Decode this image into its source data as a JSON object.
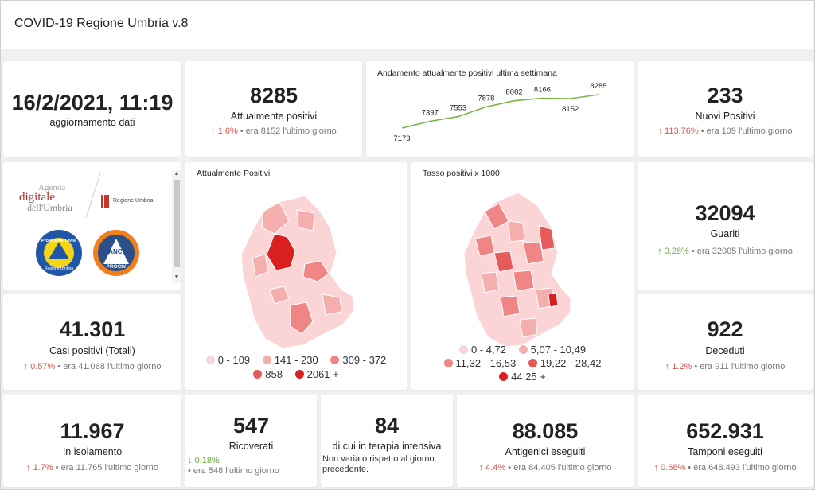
{
  "header": {
    "title": "COVID-19 Regione Umbria v.8"
  },
  "update": {
    "datetime": "16/2/2021, 11:19",
    "label": "aggiornamento dati"
  },
  "positivi": {
    "value": "8285",
    "label": "Attualmente positivi",
    "pct": "1.6%",
    "prev": "era 8152",
    "suffix": "l'ultimo giorno"
  },
  "trend_chart": {
    "title": "Andamento attualmente positivi ultima settimana",
    "chart_data": {
      "type": "line",
      "title": "Andamento attualmente positivi ultima settimana",
      "values": [
        7173,
        7397,
        7553,
        7878,
        8082,
        8166,
        8152,
        8285
      ],
      "labels": [
        "7173",
        "7397",
        "7553",
        "7878",
        "8082",
        "8166",
        "8152",
        "8285"
      ],
      "color": "#7ab648"
    }
  },
  "nuovi": {
    "value": "233",
    "label": "Nuovi Positivi",
    "pct": "113.76%",
    "prev": "era 109",
    "suffix": "l'ultimo giorno"
  },
  "logos": {
    "agenda_line1": "Agenda",
    "agenda_line2": "digitale",
    "agenda_line3": "dell'Umbria",
    "regione": "Regione Umbria",
    "protezione_top": "Protezione Civile",
    "protezione_bottom": "Regione Umbria",
    "anci_top": "ANCI",
    "anci_bottom": "PROCIV"
  },
  "map1": {
    "title": "Attualmente Positivi",
    "legend": [
      {
        "label": "0 - 109",
        "color": "#fbd5d5"
      },
      {
        "label": "141 - 230",
        "color": "#f5aeae"
      },
      {
        "label": "309 - 372",
        "color": "#ef8585"
      },
      {
        "label": "858",
        "color": "#e65a5a"
      },
      {
        "label": "2061 +",
        "color": "#d91f1f"
      }
    ]
  },
  "map2": {
    "title": "Tasso positivi x 1000",
    "legend": [
      {
        "label": "0 - 4,72",
        "color": "#fbd5d5"
      },
      {
        "label": "5,07 - 10,49",
        "color": "#f5aeae"
      },
      {
        "label": "11,32 - 16,53",
        "color": "#ef8585"
      },
      {
        "label": "19,22 - 28,42",
        "color": "#e65a5a"
      },
      {
        "label": "44,25 +",
        "color": "#d91f1f"
      }
    ]
  },
  "guariti": {
    "value": "32094",
    "label": "Guariti",
    "pct": "0.28%",
    "prev": "era 32005",
    "suffix": "l'ultimo giorno"
  },
  "totali": {
    "value": "41.301",
    "label": "Casi positivi (Totali)",
    "pct": "0.57%",
    "prev": "era 41.068",
    "suffix": "l'ultimo giorno"
  },
  "deceduti": {
    "value": "922",
    "label": "Deceduti",
    "pct": "1.2%",
    "prev": "era 911",
    "suffix": "l'ultimo giorno"
  },
  "isolamento": {
    "value": "11.967",
    "label": "In isolamento",
    "pct": "1.7%",
    "prev": "era 11.765",
    "suffix": "l'ultimo giorno"
  },
  "ricoverati": {
    "value": "547",
    "label": "Ricoverati",
    "pct": "0.18%",
    "prev": "era 548",
    "suffix": "l'ultimo giorno"
  },
  "terapia": {
    "value": "84",
    "label": "di cui in terapia intensiva",
    "note": "Non variato rispetto al giorno precedente."
  },
  "antigenici": {
    "value": "88.085",
    "label": "Antigenici eseguiti",
    "pct": "4.4%",
    "prev": "era 84.405",
    "suffix": "l'ultimo giorno"
  },
  "tamponi": {
    "value": "652.931",
    "label": "Tamponi eseguiti",
    "pct": "0.68%",
    "prev": "era 648.493",
    "suffix": "l'ultimo giorno"
  }
}
